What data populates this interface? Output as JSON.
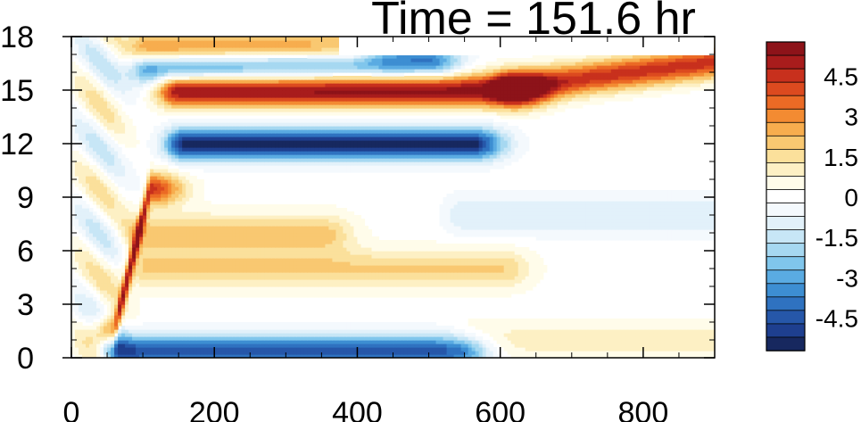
{
  "title": "Time = 151.6 hr",
  "chart_data": {
    "type": "heatmap",
    "title": "Time = 151.6 hr",
    "xlabel": "",
    "ylabel": "",
    "xlim": [
      0,
      900
    ],
    "ylim": [
      0,
      18
    ],
    "x_ticks": [
      0,
      200,
      400,
      600,
      800
    ],
    "y_ticks": [
      0,
      3,
      6,
      9,
      12,
      15,
      18
    ],
    "colorbar": {
      "levels": [
        -5.5,
        -5,
        -4.5,
        -4,
        -3.5,
        -3,
        -2.5,
        -2,
        -1.5,
        -1,
        -0.5,
        0,
        0.5,
        1,
        1.5,
        2,
        2.5,
        3,
        3.5,
        4,
        4.5,
        5,
        5.5
      ],
      "colors": [
        "#17285f",
        "#1e3f8f",
        "#2657a9",
        "#2f72c0",
        "#3d8ed2",
        "#5aabe2",
        "#80c6ec",
        "#a6d8f1",
        "#c7e6f6",
        "#e2f1fa",
        "#f4f9fd",
        "#ffffff",
        "#fffcea",
        "#fdf0c4",
        "#fbe09b",
        "#f9c871",
        "#f7ad4e",
        "#f38b32",
        "#eb6a25",
        "#dc4a1f",
        "#c8301d",
        "#a81c1c",
        "#8d1319"
      ],
      "tick_labels": [
        "4.5",
        "3",
        "1.5",
        "0",
        "-1.5",
        "-3",
        "-4.5"
      ],
      "tick_values": [
        4.5,
        3,
        1.5,
        0,
        -1.5,
        -3,
        -4.5
      ]
    },
    "features": [
      {
        "x": [
          150,
          620
        ],
        "y": [
          15.0,
          15.0
        ],
        "amp": 5.5,
        "note": "strong positive band near y=15"
      },
      {
        "x": [
          620,
          900
        ],
        "y": [
          15.2,
          16.6
        ],
        "amp": 4.5,
        "note": "positive band rising toward right edge"
      },
      {
        "x": [
          160,
          560
        ],
        "y": [
          12.0,
          12.0
        ],
        "amp": -5.5,
        "note": "strong negative band near y=12"
      },
      {
        "x": [
          110,
          380
        ],
        "y": [
          17.3,
          17.3
        ],
        "amp": 3.5,
        "note": "positive band near top"
      },
      {
        "x": [
          110,
          500
        ],
        "y": [
          16.3,
          16.6
        ],
        "amp": -4.0,
        "note": "negative band between top bands"
      },
      {
        "x": [
          70,
          540
        ],
        "y": [
          0.4,
          0.4
        ],
        "amp": -4.5,
        "note": "negative band at bottom"
      },
      {
        "x": [
          60,
          110
        ],
        "y": [
          1.5,
          9.5
        ],
        "amp": 4.5,
        "note": "diagonal positive streak"
      },
      {
        "x": [
          100,
          600
        ],
        "y": [
          5.0,
          5.0
        ],
        "amp": 1.8,
        "note": "weak positive band y~5"
      },
      {
        "x": [
          100,
          350
        ],
        "y": [
          7.0,
          7.0
        ],
        "amp": 2.0,
        "note": "weak positive band y~7"
      },
      {
        "x": [
          550,
          900
        ],
        "y": [
          8.0,
          8.0
        ],
        "amp": -1.2,
        "note": "weak negative region right side"
      },
      {
        "x": [
          560,
          900
        ],
        "y": [
          1.0,
          1.0
        ],
        "amp": 1.0,
        "note": "weak positive region bottom right"
      }
    ]
  }
}
